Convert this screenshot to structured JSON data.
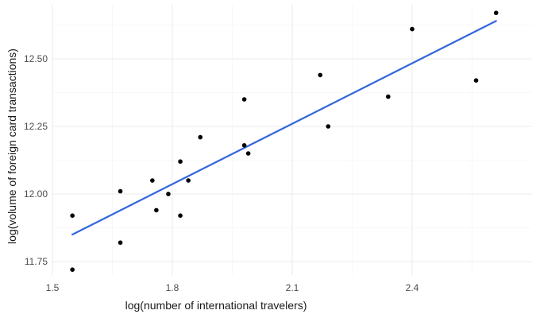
{
  "chart_data": {
    "type": "scatter",
    "title": "",
    "xlabel": "log(number of international travelers)",
    "ylabel": "log(volume of foreign card transactions)",
    "xlim": [
      1.5,
      2.7
    ],
    "ylim": [
      11.7,
      12.7
    ],
    "x_ticks": [
      1.5,
      1.8,
      2.1,
      2.4
    ],
    "x_tick_labels": [
      "1.5",
      "1.8",
      "2.1",
      "2.4"
    ],
    "y_ticks": [
      11.75,
      12.0,
      12.25,
      12.5
    ],
    "y_tick_labels": [
      "11.75",
      "12.00",
      "12.25",
      "12.50"
    ],
    "grid": true,
    "legend": "none",
    "colors": {
      "points": "#000000",
      "fit_line": "#3366dd"
    },
    "points": [
      {
        "x": 1.55,
        "y": 11.72
      },
      {
        "x": 1.55,
        "y": 11.92
      },
      {
        "x": 1.67,
        "y": 11.82
      },
      {
        "x": 1.67,
        "y": 12.01
      },
      {
        "x": 1.75,
        "y": 12.05
      },
      {
        "x": 1.76,
        "y": 11.94
      },
      {
        "x": 1.79,
        "y": 12.0
      },
      {
        "x": 1.82,
        "y": 11.92
      },
      {
        "x": 1.82,
        "y": 12.12
      },
      {
        "x": 1.84,
        "y": 12.05
      },
      {
        "x": 1.87,
        "y": 12.21
      },
      {
        "x": 1.98,
        "y": 12.18
      },
      {
        "x": 1.98,
        "y": 12.35
      },
      {
        "x": 1.99,
        "y": 12.15
      },
      {
        "x": 2.17,
        "y": 12.44
      },
      {
        "x": 2.19,
        "y": 12.25
      },
      {
        "x": 2.34,
        "y": 12.36
      },
      {
        "x": 2.4,
        "y": 12.61
      },
      {
        "x": 2.56,
        "y": 12.42
      },
      {
        "x": 2.61,
        "y": 12.67
      }
    ],
    "fit_line": [
      {
        "x": 1.55,
        "y": 11.85
      },
      {
        "x": 2.61,
        "y": 12.64
      }
    ]
  }
}
